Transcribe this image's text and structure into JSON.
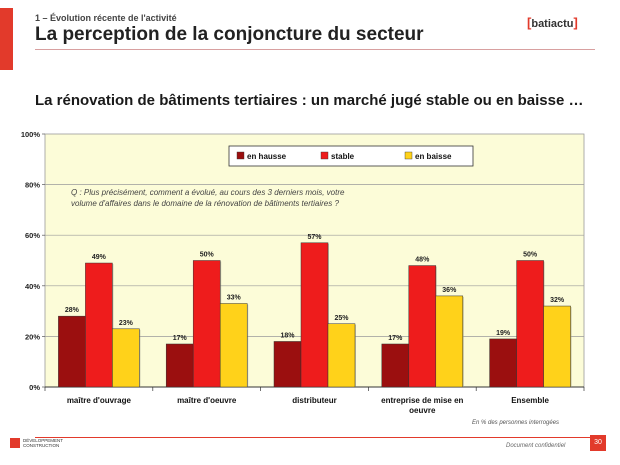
{
  "header": {
    "section": "1 – Évolution récente de l'activité",
    "title": "La perception de la conjoncture du secteur",
    "logo": "batiactu",
    "logo_open": "[",
    "logo_close": "]"
  },
  "subtitle": "La rénovation de bâtiments tertiaires : un marché jugé stable ou en baisse …",
  "chart_data": {
    "type": "bar",
    "question_lines": [
      "Q : Plus précisément, comment a évolué, au cours des 3 derniers mois, votre",
      "volume d'affaires dans le domaine de la rénovation de bâtiments tertiaires ?"
    ],
    "categories": [
      [
        "maître d'ouvrage"
      ],
      [
        "maître d'oeuvre"
      ],
      [
        "distributeur"
      ],
      [
        "entreprise de mise en",
        "oeuvre"
      ],
      [
        "Ensemble"
      ]
    ],
    "series": [
      {
        "name": "en hausse",
        "color": "#9b0f0f",
        "values": [
          28,
          17,
          18,
          17,
          19
        ]
      },
      {
        "name": "stable",
        "color": "#ee1c1c",
        "values": [
          49,
          50,
          57,
          48,
          50
        ]
      },
      {
        "name": "en baisse",
        "color": "#ffd21a",
        "values": [
          23,
          33,
          25,
          36,
          32
        ]
      }
    ],
    "ylim": [
      0,
      100
    ],
    "yticks": [
      0,
      20,
      40,
      60,
      80,
      100
    ],
    "ytick_labels": [
      "0%",
      "20%",
      "40%",
      "60%",
      "80%",
      "100%"
    ],
    "value_suffix": "%",
    "legend_position": "top-center",
    "grid": true
  },
  "footer": {
    "source_note": "En % des personnes interrogées",
    "confidential": "Document confidentiel",
    "page": "30",
    "brand_line1": "DÉVELOPPEMENT",
    "brand_line2": "CONSTRUCTION"
  }
}
